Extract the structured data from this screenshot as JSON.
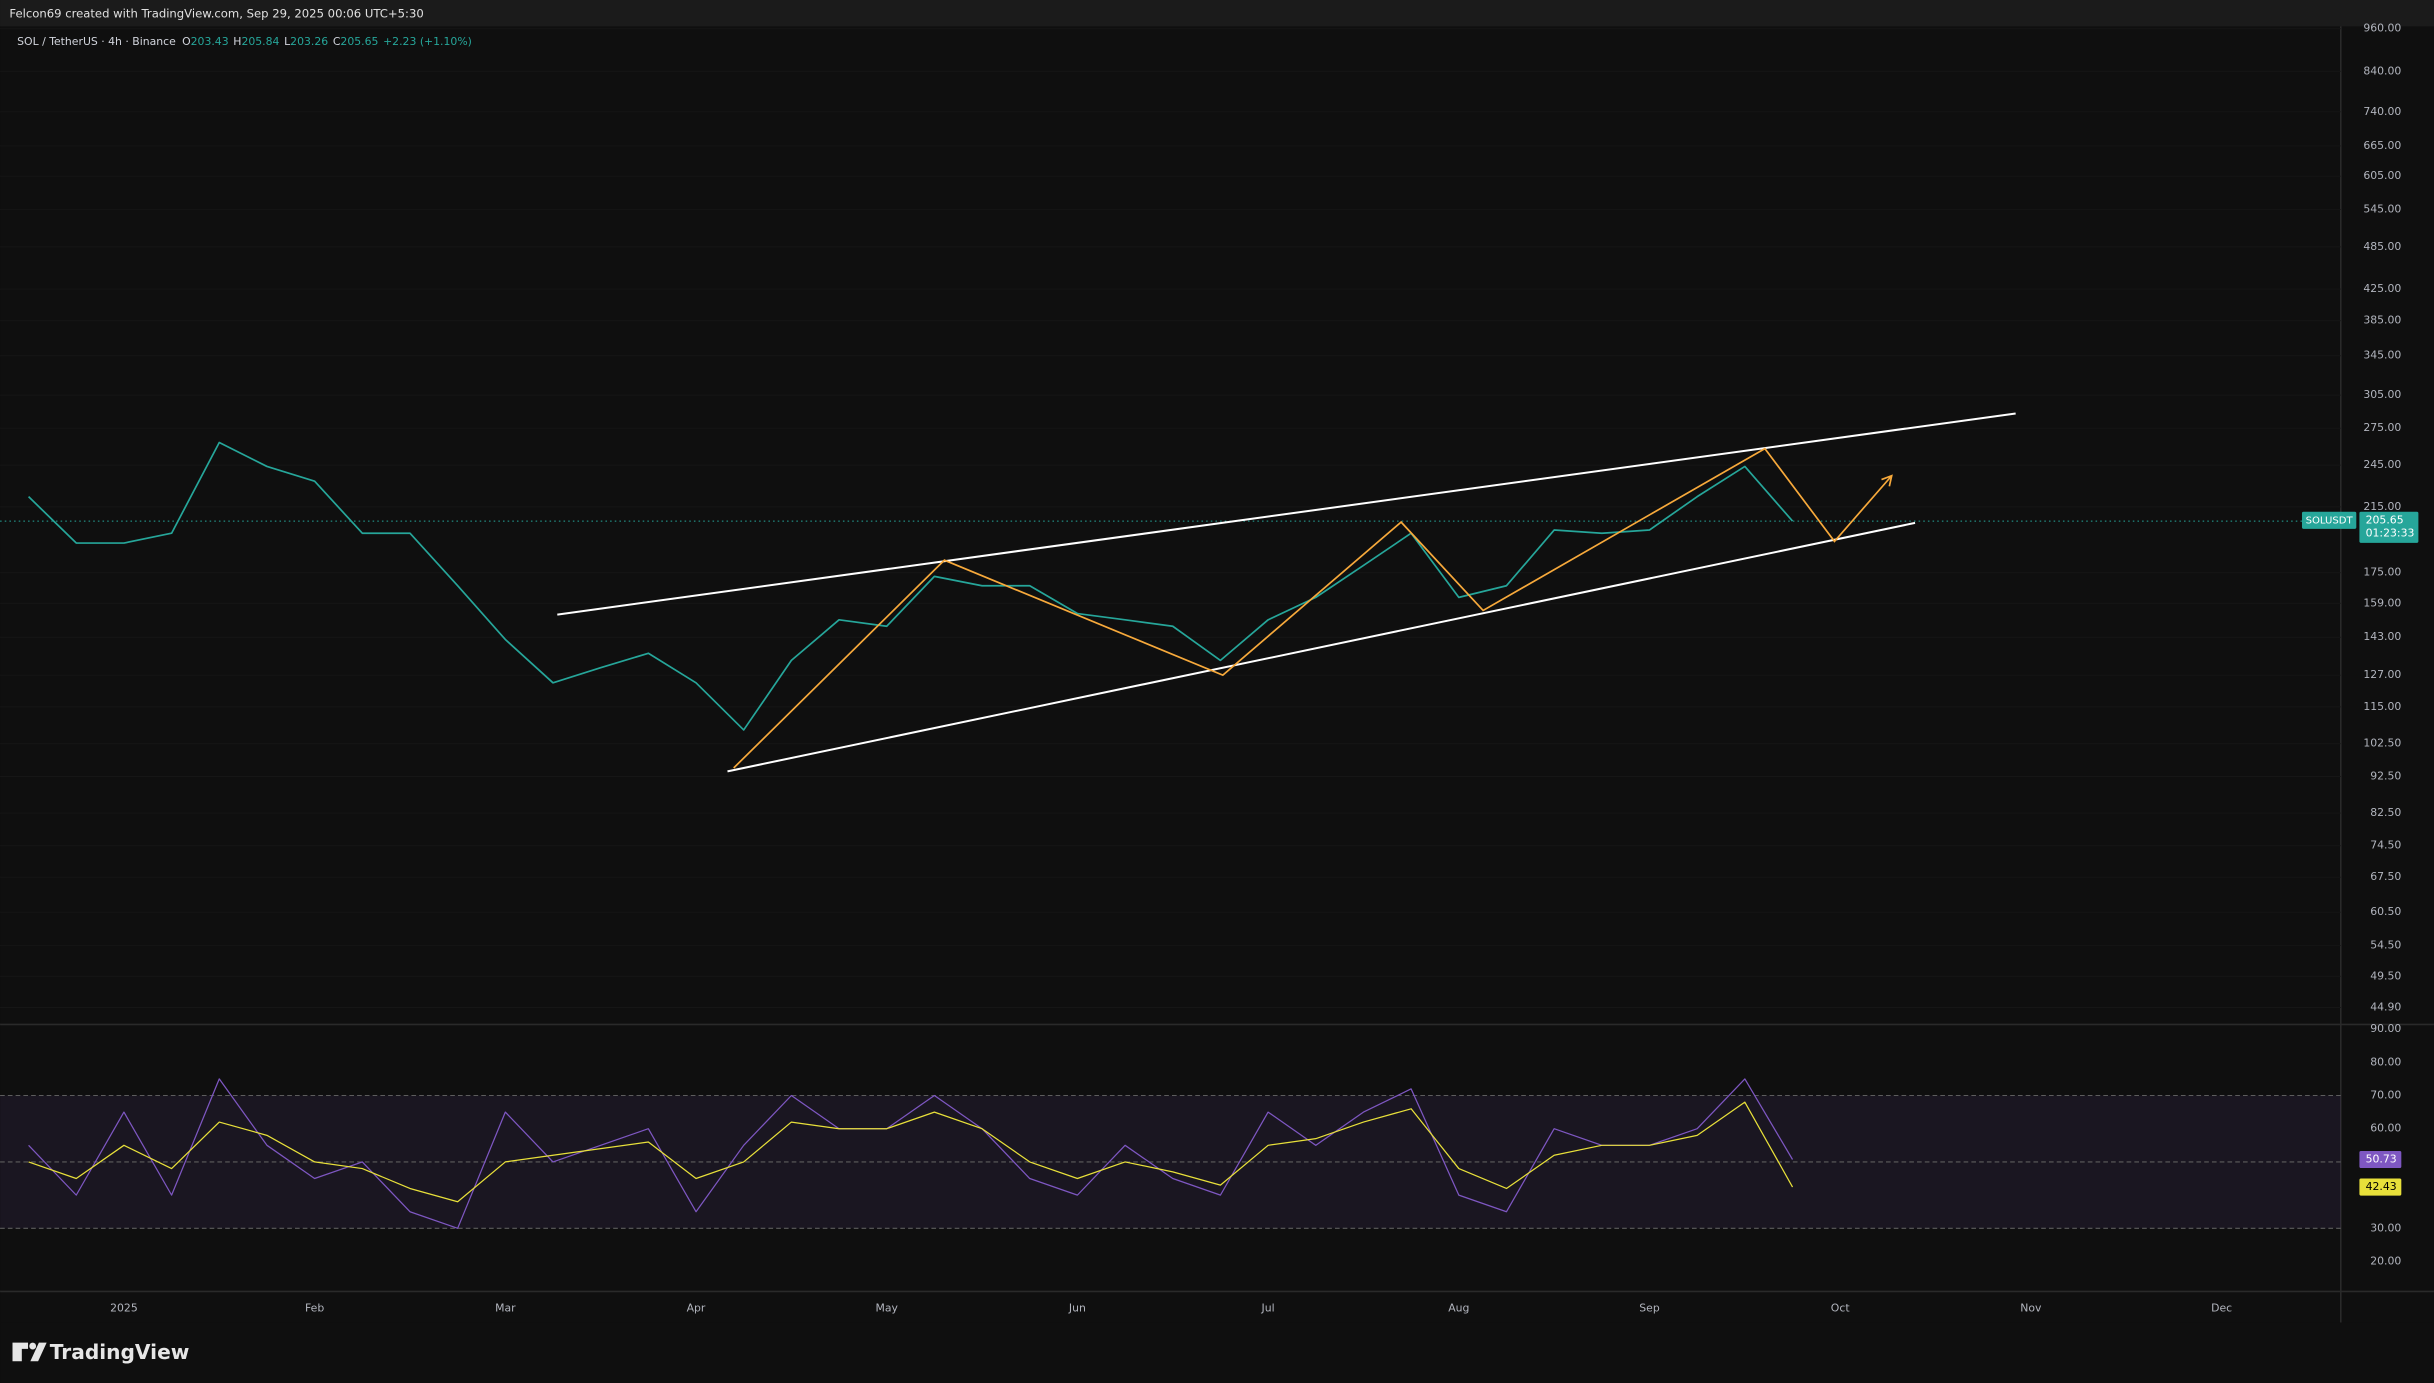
{
  "header": {
    "text": "Felcon69 created with TradingView.com, Sep 29, 2025 00:06 UTC+5:30"
  },
  "chart_data": [
    {
      "type": "line",
      "title": "SOL / TetherUS · 4h · Binance",
      "ohlc": {
        "labels": [
          "O",
          "H",
          "L",
          "C"
        ],
        "values": [
          203.43,
          205.84,
          203.26,
          205.65
        ]
      },
      "change": {
        "value": 2.23,
        "label": "+2.23 (+1.10%)"
      },
      "categories": [
        null,
        null,
        "2025",
        null,
        null,
        null,
        "Feb",
        null,
        null,
        null,
        "Mar",
        null,
        null,
        null,
        "Apr",
        null,
        null,
        null,
        "May",
        null,
        null,
        null,
        "Jun",
        null,
        null,
        null,
        "Jul",
        null,
        null,
        null,
        "Aug",
        null,
        null,
        null,
        "Sep",
        null,
        null,
        null,
        "Oct",
        null,
        null,
        null,
        "Nov",
        null,
        null,
        null,
        "Dec",
        null,
        null
      ],
      "series": [
        {
          "name": "SOLUSDT",
          "color": "#26a69a",
          "values": [
            222,
            192,
            192,
            198,
            263,
            244,
            233,
            198,
            198,
            168,
            142,
            124,
            130,
            136,
            124,
            107,
            133,
            151,
            148,
            173,
            168,
            168,
            154,
            151,
            148,
            133,
            151,
            162,
            179,
            198,
            162,
            168,
            200,
            198,
            200,
            222,
            244,
            205.65,
            null,
            null,
            null,
            null,
            null,
            null,
            null,
            null,
            null,
            null,
            null
          ]
        }
      ],
      "countdown": "01:23:33",
      "log_scale": true,
      "grid": true,
      "ylim": [
        43,
        962
      ],
      "yticks": [
        {
          "value": 960,
          "label": "960.00"
        },
        {
          "value": 840,
          "label": "840.00"
        },
        {
          "value": 740,
          "label": "740.00"
        },
        {
          "value": 665,
          "label": "665.00"
        },
        {
          "value": 605,
          "label": "605.00"
        },
        {
          "value": 545,
          "label": "545.00"
        },
        {
          "value": 485,
          "label": "485.00"
        },
        {
          "value": 425,
          "label": "425.00"
        },
        {
          "value": 385,
          "label": "385.00"
        },
        {
          "value": 345,
          "label": "345.00"
        },
        {
          "value": 305,
          "label": "305.00"
        },
        {
          "value": 275,
          "label": "275.00"
        },
        {
          "value": 245,
          "label": "245.00"
        },
        {
          "value": 215,
          "label": "215.00"
        },
        {
          "value": 175,
          "label": "175.00"
        },
        {
          "value": 159,
          "label": "159.00"
        },
        {
          "value": 143,
          "label": "143.00"
        },
        {
          "value": 127,
          "label": "127.00"
        },
        {
          "value": 115,
          "label": "115.00"
        },
        {
          "value": 102.5,
          "label": "102.50"
        },
        {
          "value": 92.5,
          "label": "92.50"
        },
        {
          "value": 82.5,
          "label": "82.50"
        },
        {
          "value": 74.5,
          "label": "74.50"
        },
        {
          "value": 67.5,
          "label": "67.50"
        },
        {
          "value": 60.5,
          "label": "60.50"
        },
        {
          "value": 54.5,
          "label": "54.50"
        },
        {
          "value": 49.5,
          "label": "49.50"
        },
        {
          "value": 44.9,
          "label": "44.90"
        }
      ],
      "trendlines": [
        {
          "color": "#ffffff",
          "points": [
            [
              11.09,
              153.5
            ],
            [
              41.68,
              288
            ]
          ]
        },
        {
          "color": "#ffffff",
          "points": [
            [
              14.66,
              94
            ],
            [
              39.57,
              204.5
            ]
          ]
        }
      ],
      "pattern": {
        "color": "#f7a93b",
        "points": [
          [
            14.79,
            95
          ],
          [
            19.21,
            182
          ],
          [
            25.05,
            127
          ],
          [
            28.79,
            205
          ],
          [
            30.51,
            155.5
          ],
          [
            36.42,
            258
          ],
          [
            37.88,
            193
          ],
          [
            39.08,
            237
          ]
        ]
      }
    },
    {
      "type": "line",
      "series": [
        {
          "color": "#7e57c2",
          "values": [
            55,
            40,
            65,
            40,
            75,
            55,
            45,
            50,
            35,
            30,
            65,
            50,
            55,
            60,
            35,
            55,
            70,
            60,
            60,
            70,
            60,
            45,
            40,
            55,
            45,
            40,
            65,
            55,
            65,
            72,
            40,
            35,
            60,
            55,
            55,
            60,
            75,
            50.73,
            null,
            null,
            null,
            null,
            null,
            null,
            null,
            null,
            null,
            null,
            null
          ]
        },
        {
          "color": "#e8e03a",
          "values": [
            50,
            45,
            55,
            48,
            62,
            58,
            50,
            48,
            42,
            38,
            50,
            52,
            54,
            56,
            45,
            50,
            62,
            60,
            60,
            65,
            60,
            50,
            45,
            50,
            47,
            43,
            55,
            57,
            62,
            66,
            48,
            42,
            52,
            55,
            55,
            58,
            68,
            42.43,
            null,
            null,
            null,
            null,
            null,
            null,
            null,
            null,
            null,
            null,
            null
          ]
        }
      ],
      "ylim": [
        11,
        91.4
      ],
      "yticks": [
        {
          "value": 90,
          "label": "90.00"
        },
        {
          "value": 80,
          "label": "80.00"
        },
        {
          "value": 70,
          "label": "70.00"
        },
        {
          "value": 60,
          "label": "60.00"
        },
        {
          "value": 30,
          "label": "30.00"
        },
        {
          "value": 20,
          "label": "20.00"
        }
      ],
      "levels": [
        70,
        50,
        30
      ]
    }
  ],
  "footer": {
    "brand": "TradingView"
  }
}
